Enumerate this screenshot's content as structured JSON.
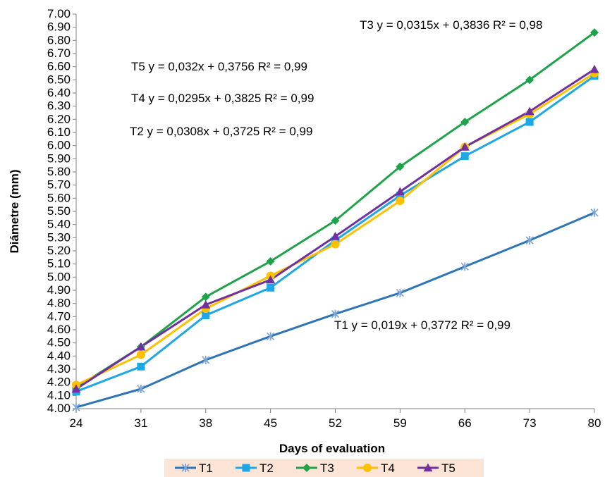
{
  "chart_data": {
    "type": "line",
    "xlabel": "Days of evaluation",
    "ylabel": "Diámetre (mm)",
    "x": [
      24,
      31,
      38,
      45,
      52,
      59,
      66,
      73,
      80
    ],
    "ylim": [
      4.0,
      7.0
    ],
    "ytick_step": 0.1,
    "grid": false,
    "legend_position": "bottom",
    "series": [
      {
        "name": "T1",
        "marker": "asterisk",
        "color": "#2e75b6",
        "values": [
          4.01,
          4.15,
          4.37,
          4.55,
          4.72,
          4.88,
          5.08,
          5.28,
          5.49
        ]
      },
      {
        "name": "T2",
        "marker": "square",
        "color": "#1ea7e6",
        "values": [
          4.13,
          4.32,
          4.71,
          4.92,
          5.28,
          5.62,
          5.92,
          6.18,
          6.53
        ]
      },
      {
        "name": "T3",
        "marker": "diamond",
        "color": "#1fa34a",
        "values": [
          4.16,
          4.47,
          4.85,
          5.12,
          5.43,
          5.84,
          6.18,
          6.5,
          6.86
        ]
      },
      {
        "name": "T4",
        "marker": "circle",
        "color": "#ffc000",
        "values": [
          4.18,
          4.41,
          4.76,
          5.01,
          5.25,
          5.58,
          5.99,
          6.24,
          6.55
        ]
      },
      {
        "name": "T5",
        "marker": "triangle",
        "color": "#7030a0",
        "values": [
          4.15,
          4.47,
          4.79,
          4.98,
          5.31,
          5.65,
          5.99,
          6.26,
          6.58
        ]
      }
    ],
    "annotations": [
      {
        "series": "T3",
        "text": "T3 y = 0,0315x + 0,3836 R² = 0,98"
      },
      {
        "series": "T5",
        "text": "T5 y = 0,032x + 0,3756 R² = 0,99"
      },
      {
        "series": "T4",
        "text": "T4 y = 0,0295x + 0,3825 R² = 0,99"
      },
      {
        "series": "T2",
        "text": "T2 y = 0,0308x + 0,3725 R² = 0,99"
      },
      {
        "series": "T1",
        "text": "T1 y = 0,019x + 0,3772 R² = 0,99"
      }
    ]
  }
}
